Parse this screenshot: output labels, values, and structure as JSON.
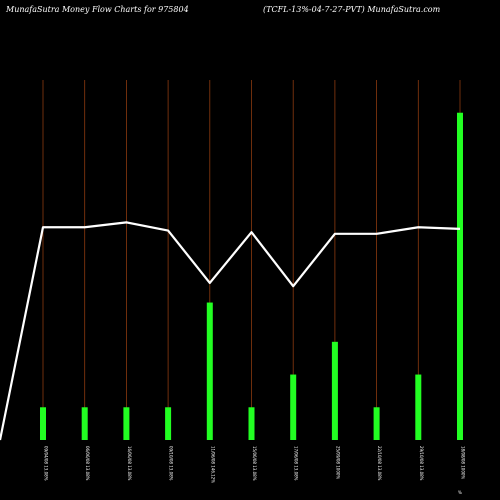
{
  "header": {
    "left": "MunafaSutra  Money Flow  Charts for 975804",
    "right": "(TCFL-13%-04-7-27-PVT) MunafaSutra.com"
  },
  "colors": {
    "background": "#000000",
    "grid": "#8b3a0f",
    "bar": "#22ff22",
    "line": "#ffffff"
  },
  "chart_data": {
    "type": "bar",
    "title": "",
    "grid": "vertical",
    "categories": [
      "09/04/08 13.08%",
      "06/06/08 13.08%",
      "16/06/08 13.08%",
      "09/10/08 13.08%",
      "11/06/08 146.12%",
      "15/06/08 13.08%",
      "17/06/08 13.08%",
      "25/09/08 1000%",
      "22/10/08 13.08%",
      "29/10/08 13.08%",
      "18/08/08 1000%"
    ],
    "extra_label": "%",
    "series": [
      {
        "type": "bar",
        "values": [
          1,
          1,
          1,
          1,
          4.2,
          1,
          2,
          3,
          1,
          2,
          10
        ]
      },
      {
        "type": "line",
        "values": [
          6.5,
          6.5,
          6.65,
          6.4,
          4.8,
          6.35,
          4.7,
          6.3,
          6.3,
          6.5,
          6.45
        ]
      }
    ],
    "line_start": 0,
    "ylim": [
      0,
      11
    ]
  }
}
